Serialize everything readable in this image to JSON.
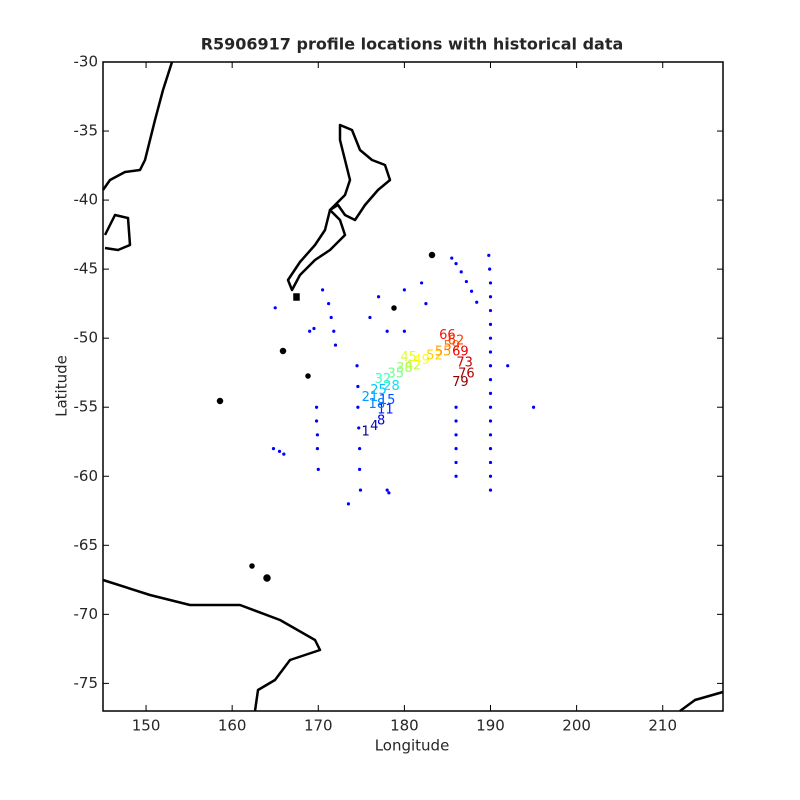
{
  "chart_data": {
    "type": "scatter",
    "title": "R5906917 profile locations with historical data",
    "xlabel": "Longitude",
    "ylabel": "Latitude",
    "xlim": [
      145,
      217
    ],
    "ylim": [
      -77,
      -30
    ],
    "xticks": [
      150,
      160,
      170,
      180,
      190,
      200,
      210
    ],
    "yticks": [
      -30,
      -35,
      -40,
      -45,
      -50,
      -55,
      -60,
      -65,
      -70,
      -75
    ],
    "series": [
      {
        "color": "#0000ff",
        "x": [
          189.8,
          189.9,
          190,
          190,
          190,
          190,
          190,
          190,
          190,
          190,
          190,
          190,
          190,
          190,
          190,
          190,
          190,
          190,
          185.5,
          186,
          186.6,
          187.2,
          187.8,
          188.4,
          186,
          186,
          186,
          186,
          186,
          186,
          174.5,
          174.6,
          174.6,
          174.7,
          174.8,
          174.8,
          174.9,
          173.5,
          169.8,
          169.8,
          169.9,
          169.9,
          170,
          170.5,
          171.2,
          171.5,
          171.8,
          172,
          169,
          169.5,
          165,
          164.8,
          165.5,
          166,
          178,
          178.2,
          192,
          195,
          182,
          180,
          182.5,
          178,
          180,
          176,
          177
        ],
        "y": [
          -44,
          -45,
          -46,
          -47,
          -48,
          -49,
          -50,
          -51,
          -52,
          -53,
          -54,
          -55,
          -56,
          -57,
          -58,
          -59,
          -60,
          -61,
          -44.2,
          -44.6,
          -45.2,
          -45.9,
          -46.6,
          -47.4,
          -55,
          -56,
          -57,
          -58,
          -59,
          -60,
          -52,
          -53.5,
          -55,
          -56.5,
          -58,
          -59.5,
          -61,
          -62,
          -55,
          -56,
          -57,
          -58,
          -59.5,
          -46.5,
          -47.5,
          -48.5,
          -49.5,
          -50.5,
          -49.5,
          -49.3,
          -47.8,
          -58,
          -58.2,
          -58.4,
          -61,
          -61.2,
          -52,
          -55,
          -46,
          -46.5,
          -47.5,
          -49.5,
          -49.5,
          -48.5,
          -47
        ]
      },
      {
        "x": [
          175.5,
          176.5,
          177.3,
          177.8,
          178,
          176.8,
          176,
          177,
          178.5,
          177.5,
          179,
          180,
          181,
          180.5,
          182,
          183.5,
          184.5,
          185.5,
          186,
          185,
          186.5,
          187,
          187.2,
          186.5
        ],
        "y": [
          -56.8,
          -56.4,
          -56,
          -55.2,
          -54.5,
          -54.8,
          -54.3,
          -53.8,
          -53.5,
          -53,
          -52.6,
          -52.2,
          -52,
          -51.4,
          -51.6,
          -51.3,
          -51,
          -50.6,
          -50.2,
          -49.8,
          -51,
          -51.8,
          -52.6,
          -53.2
        ],
        "labels": [
          1,
          4,
          8,
          11,
          15,
          18,
          21,
          25,
          28,
          32,
          35,
          38,
          42,
          45,
          49,
          52,
          55,
          59,
          62,
          66,
          69,
          73,
          76,
          79
        ],
        "colors": [
          "#00008f",
          "#0000bf",
          "#0000ef",
          "#0020ff",
          "#0050ff",
          "#0080ff",
          "#00a0ff",
          "#00c0ff",
          "#10e0ef",
          "#40ffbf",
          "#70ff8f",
          "#a0ff60",
          "#c0ff40",
          "#e0ff20",
          "#ffff00",
          "#ffd000",
          "#ffa000",
          "#ff7000",
          "#ff4000",
          "#ff1000",
          "#ef0000",
          "#cf0000",
          "#af0000",
          "#8f0000"
        ]
      }
    ]
  }
}
